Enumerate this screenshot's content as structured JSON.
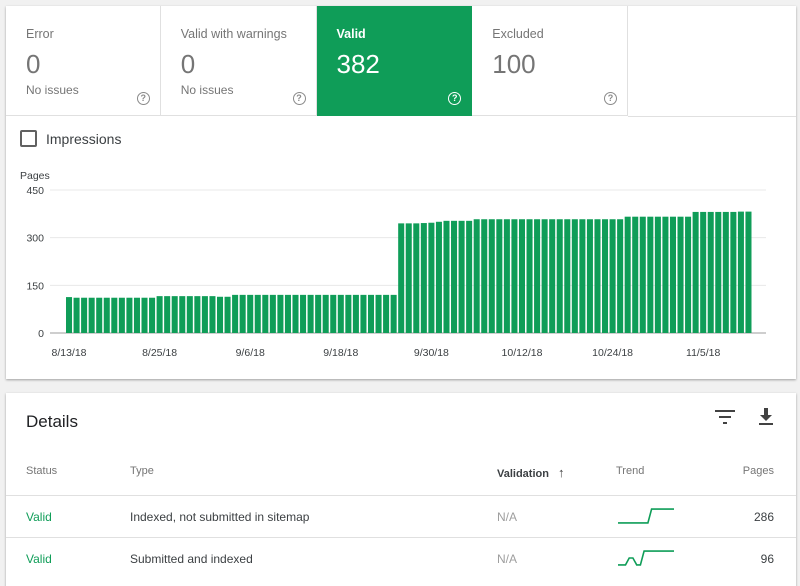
{
  "tiles": [
    {
      "label": "Error",
      "value": "0",
      "sub": "No issues",
      "active": false
    },
    {
      "label": "Valid with warnings",
      "value": "0",
      "sub": "No issues",
      "active": false
    },
    {
      "label": "Valid",
      "value": "382",
      "sub": "",
      "active": true
    },
    {
      "label": "Excluded",
      "value": "100",
      "sub": "",
      "active": false
    }
  ],
  "impressions": {
    "label": "Impressions",
    "checked": false
  },
  "chart_data": {
    "type": "bar",
    "ylabel": "Pages",
    "ylim": [
      0,
      450
    ],
    "yticks": [
      0,
      150,
      300,
      450
    ],
    "xtick_labels": [
      "8/13/18",
      "8/25/18",
      "9/6/18",
      "9/18/18",
      "9/30/18",
      "10/12/18",
      "10/24/18",
      "11/5/18"
    ],
    "xtick_indices": [
      0,
      12,
      24,
      36,
      48,
      60,
      72,
      84
    ],
    "color": "#0f9d58",
    "values": [
      113,
      111,
      111,
      111,
      111,
      111,
      111,
      111,
      111,
      111,
      111,
      111,
      116,
      116,
      116,
      116,
      116,
      116,
      116,
      116,
      114,
      114,
      120,
      120,
      120,
      120,
      120,
      120,
      120,
      120,
      120,
      120,
      120,
      120,
      120,
      120,
      120,
      120,
      120,
      120,
      120,
      120,
      120,
      120,
      345,
      345,
      345,
      346,
      347,
      350,
      353,
      353,
      353,
      353,
      358,
      358,
      358,
      358,
      358,
      358,
      358,
      358,
      358,
      358,
      358,
      358,
      358,
      358,
      358,
      358,
      358,
      358,
      358,
      358,
      366,
      366,
      366,
      366,
      366,
      366,
      366,
      366,
      366,
      381,
      381,
      381,
      381,
      381,
      381,
      382,
      382
    ]
  },
  "details": {
    "title": "Details",
    "columns": {
      "status": "Status",
      "type": "Type",
      "validation": "Validation",
      "trend": "Trend",
      "pages": "Pages"
    },
    "sort_arrow": "↑",
    "rows": [
      {
        "status": "Valid",
        "type": "Indexed, not submitted in sitemap",
        "validation": "N/A",
        "trend": [
          180,
          180,
          180,
          180,
          180,
          180,
          180,
          180,
          180,
          286,
          286,
          286,
          286,
          286,
          286,
          286
        ],
        "pages": "286"
      },
      {
        "status": "Valid",
        "type": "Submitted and indexed",
        "validation": "N/A",
        "trend": [
          94,
          94,
          94,
          95,
          95,
          94,
          94,
          96,
          96,
          96,
          96,
          96,
          96,
          96,
          96,
          96
        ],
        "pages": "96"
      }
    ]
  },
  "colors": {
    "accent": "#0f9d58",
    "text_secondary": "#757575"
  },
  "icons": {
    "help": "help-circle-icon",
    "filter": "filter-icon",
    "download": "download-icon",
    "sort": "arrow-up-icon"
  }
}
